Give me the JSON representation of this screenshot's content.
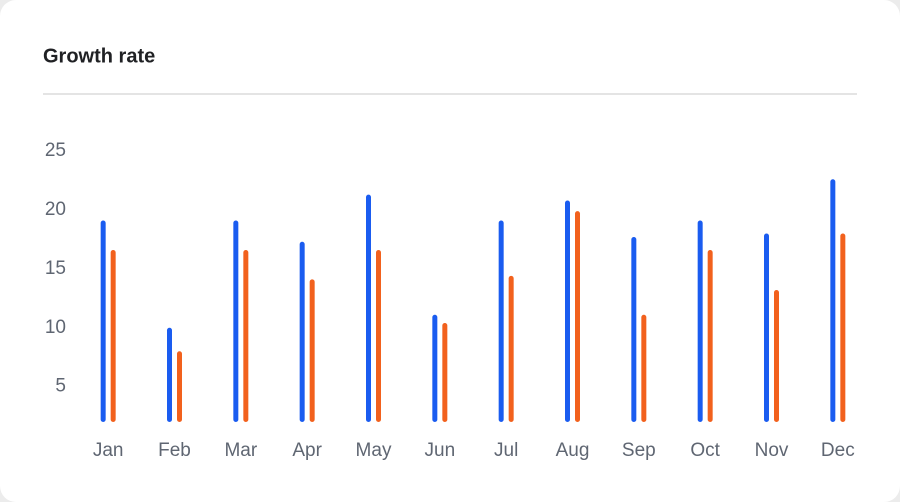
{
  "chart_data": {
    "type": "bar",
    "title": "Growth rate",
    "categories": [
      "Jan",
      "Feb",
      "Mar",
      "Apr",
      "May",
      "Jun",
      "Jul",
      "Aug",
      "Sep",
      "Oct",
      "Nov",
      "Dec"
    ],
    "series": [
      {
        "color": "#1a5cf0",
        "values": [
          19.1,
          10.0,
          19.1,
          17.3,
          21.3,
          11.1,
          19.1,
          20.8,
          17.7,
          19.1,
          18.0,
          22.6
        ]
      },
      {
        "color": "#f2611d",
        "values": [
          16.6,
          8.0,
          16.6,
          14.1,
          16.6,
          10.4,
          14.4,
          19.9,
          11.1,
          16.6,
          13.2,
          18.0
        ]
      }
    ],
    "ylim": [
      2,
      25
    ],
    "yticks": [
      5,
      10,
      15,
      20,
      25
    ],
    "grid": false
  }
}
